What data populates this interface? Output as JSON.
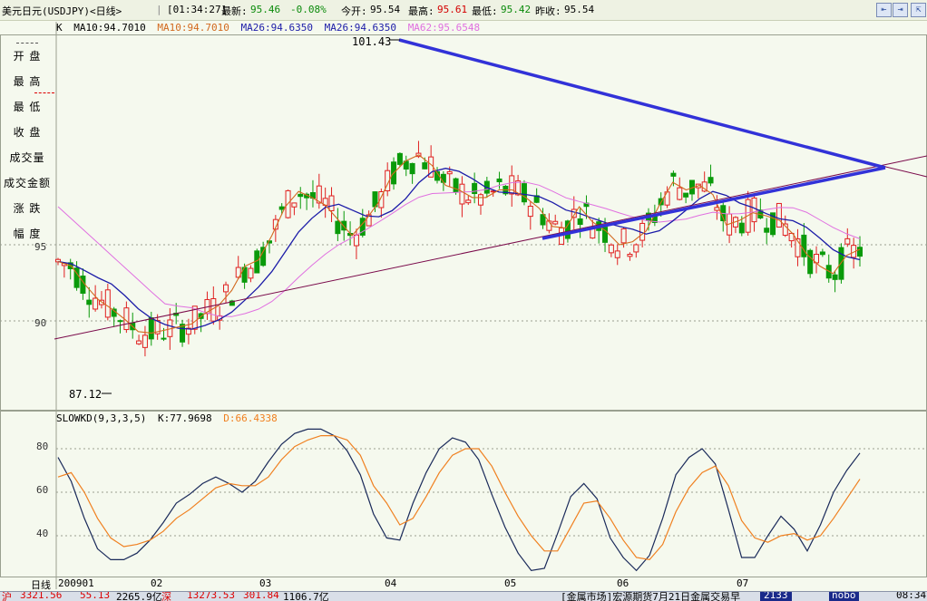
{
  "header": {
    "title": "美元日元(USDJPY)<日线>",
    "time": "[01:34:27]",
    "latest_label": "最新:",
    "latest": "95.46",
    "change": "-0.08%",
    "open_label": "今开:",
    "open": "95.54",
    "high_label": "最高:",
    "high": "95.61",
    "low_label": "最低:",
    "low": "95.42",
    "prev_label": "昨收:",
    "prev": "95.54"
  },
  "window_buttons": [
    "⇤",
    "⇥",
    "⇱"
  ],
  "legend": {
    "k": "K",
    "ma10a": "MA10:94.7010",
    "ma10b": "MA10:94.7010",
    "ma26a": "MA26:94.6350",
    "ma26b": "MA26:94.6350",
    "ma62": "MA62:95.6548"
  },
  "side_menu": [
    "开  盘",
    "最  高",
    "最  低",
    "收  盘",
    "成交量",
    "成交金额",
    "涨  跌",
    "幅  度"
  ],
  "annotations": {
    "high_marker": "101.43",
    "low_marker": "87.12"
  },
  "price_axis": [
    "95",
    "90"
  ],
  "kd_legend": {
    "name": "SLOWKD(9,3,3,5)",
    "k": "K:77.9698",
    "d": "D:66.4338"
  },
  "kd_axis": [
    "80",
    "60",
    "40"
  ],
  "date_axis": {
    "period": "日线",
    "labels": [
      "200901",
      "02",
      "03",
      "04",
      "05",
      "06",
      "07"
    ]
  },
  "bottom": {
    "sh": "沪",
    "sh_val": "3321.56",
    "sh_chg": "55.13",
    "sh_amt": "2265.9亿",
    "sz": "深",
    "sz_val": "13273.53",
    "sz_chg": "301.84",
    "sz_amt": "1106.7亿",
    "news": "[金属市场]宏源期货7月21日金属交易早",
    "badge": "2133",
    "status": "nobo",
    "clock": "08:34"
  },
  "colors": {
    "up": "#e02020",
    "down": "#0a9a0a",
    "ma10": "#d2691e",
    "ma26": "#1c1ca8",
    "ma62": "#e070e0",
    "trendline": "#3232d8",
    "support": "#7a0a4a",
    "k_line": "#1a2a5a",
    "d_line": "#f08020",
    "grid": "#9aa090"
  },
  "chart_data": [
    {
      "type": "candlestick",
      "title": "美元日元(USDJPY)<日线>",
      "x": [
        "2009-01",
        "2009-02",
        "2009-03",
        "2009-04",
        "2009-05",
        "2009-06",
        "2009-07"
      ],
      "ylim": [
        86.2,
        103.6
      ],
      "annotated_high": 101.43,
      "annotated_low": 87.12,
      "ma10_path": [
        93.9,
        93.6,
        92.4,
        91.4,
        90.8,
        90.1,
        89.3,
        89.2,
        89.4,
        89.6,
        89.8,
        90.5,
        91.0,
        92.0,
        93.6,
        94.0,
        95.6,
        97.5,
        98.5,
        98.1,
        97.6,
        96.6,
        95.6,
        96.6,
        97.8,
        99.6,
        100.5,
        100.9,
        100.2,
        98.9,
        98.6,
        98.1,
        98.1,
        98.6,
        98.6,
        98.1,
        97.4,
        96.2,
        96.1,
        97.5,
        96.5,
        95.9,
        95.0,
        95.2,
        95.9,
        97.6,
        99.1,
        98.6,
        98.9,
        98.3,
        96.3,
        96.6,
        97.1,
        96.9,
        96.6,
        95.7,
        94.4,
        93.6,
        93.1,
        94.3,
        94.7
      ]
    },
    {
      "type": "line",
      "title": "SLOWKD(9,3,3,5)",
      "ylim": [
        20,
        95
      ],
      "series": [
        {
          "name": "K",
          "values": [
            76,
            65,
            48,
            34,
            29,
            29,
            32,
            38,
            46,
            55,
            59,
            64,
            67,
            64,
            60,
            65,
            74,
            82,
            87,
            89,
            89,
            86,
            79,
            68,
            50,
            39,
            38,
            55,
            69,
            80,
            85,
            83,
            75,
            59,
            44,
            32,
            24,
            25,
            41,
            58,
            64,
            57,
            39,
            30,
            24,
            31,
            48,
            68,
            76,
            80,
            73,
            52,
            30,
            30,
            40,
            49,
            43,
            33,
            45,
            60,
            70,
            78
          ]
        },
        {
          "name": "D",
          "values": [
            67,
            69,
            60,
            48,
            39,
            35,
            36,
            38,
            42,
            48,
            52,
            57,
            62,
            64,
            63,
            63,
            67,
            75,
            81,
            84,
            86,
            86,
            84,
            77,
            63,
            55,
            45,
            48,
            58,
            69,
            77,
            80,
            80,
            72,
            60,
            49,
            40,
            33,
            33,
            44,
            55,
            56,
            48,
            38,
            30,
            29,
            36,
            51,
            62,
            69,
            72,
            63,
            47,
            39,
            37,
            40,
            41,
            38,
            40,
            48,
            57,
            66
          ]
        }
      ]
    }
  ]
}
